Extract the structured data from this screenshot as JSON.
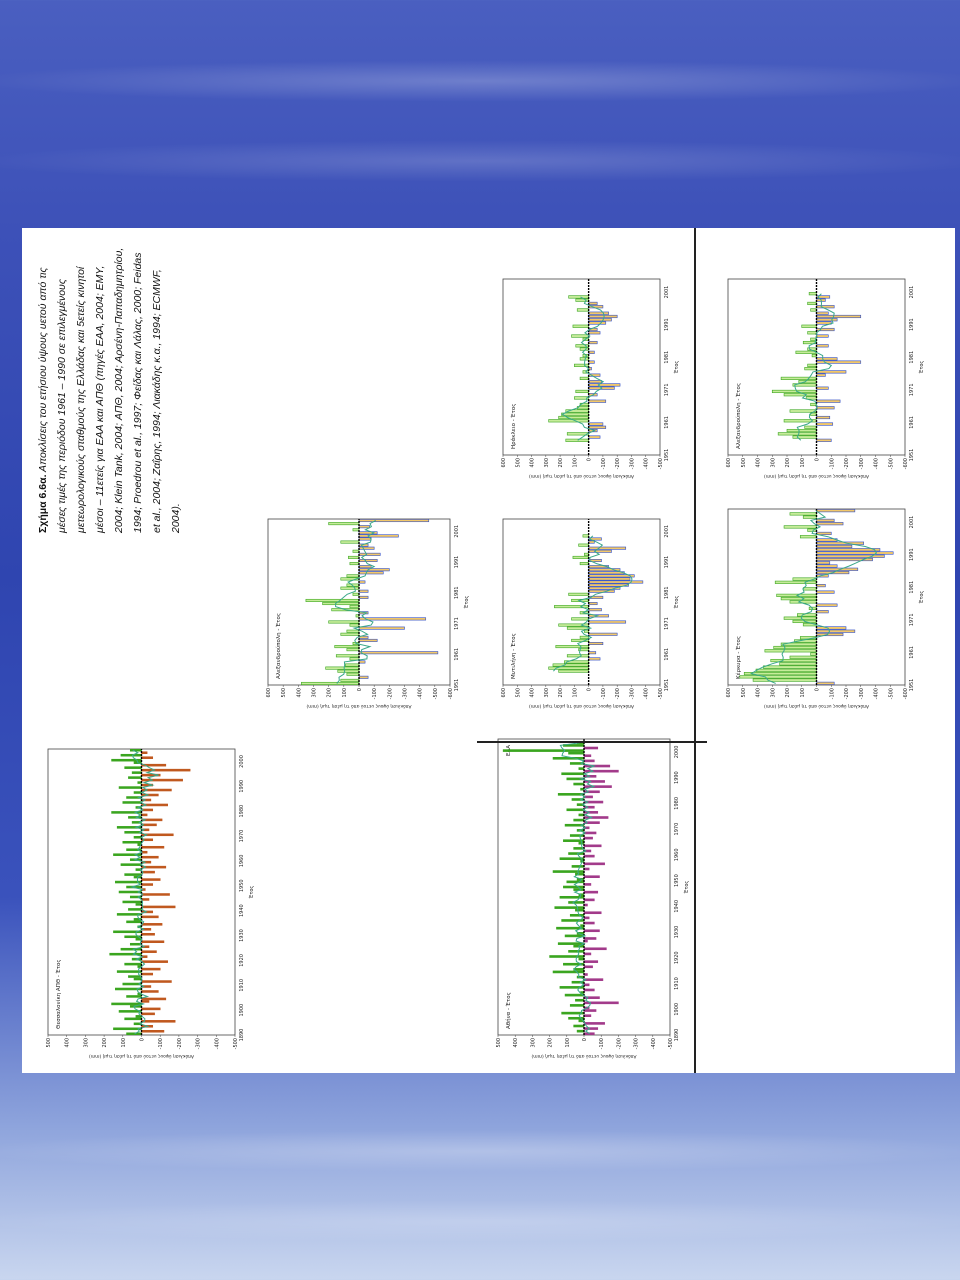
{
  "caption": {
    "lead": "Σχήμα 6.6α.",
    "text": "Αποκλίσεις του ετήσιου ύψους υετού από τις μέσες τιμές της περιόδου 1961 – 1990 σε επιλεγμένους μετεωρολογικούς σταθμούς της Ελλάδας και 5ετείς κινητοί μέσοι – 11ετείς για ΕΑΑ και ΑΠΘ (πηγές ΕΑΑ, 2004; ΕΜΥ, 2004; Klein Tank, 2004; ΑΠΘ, 2004; Αρσένη-Παπαδημητρίου, 1994; Proedrou et al., 1997; Φείδας και Λάλας, 2000; Feidas et al., 2004; Ζαΐρης, 1994; Λιακάδης κ.α., 1994; ECMWF, 2004)."
  },
  "colors": {
    "positive": "#3aa51f",
    "positive_light": "#c6ec9a",
    "negative": "#f2c86a",
    "negative_edge": "#2f4ec8",
    "negative_dark": "#c0581e",
    "negative_purple": "#a23a8a",
    "trend": "#3aa88a"
  },
  "chart_data": [
    {
      "type": "bar",
      "station": "Αθήνα - Έτος",
      "label": "ΕΑΑ",
      "ylabel": "Απόκλιση ύψους υετού από τη μέση τιμή (mm)",
      "xlabel": "Έτος",
      "xlim": [
        1890,
        2005
      ],
      "ylim": [
        -500,
        500
      ],
      "xticks": [
        1890,
        1900,
        1910,
        1920,
        1930,
        1940,
        1950,
        1960,
        1970,
        1980,
        1990,
        2000
      ],
      "yticks": [
        500,
        400,
        300,
        200,
        100,
        0,
        -100,
        -200,
        -300,
        -400,
        -500
      ],
      "start_year": 1890,
      "values": [
        -60,
        40,
        -80,
        60,
        -120,
        30,
        90,
        -40,
        130,
        -70,
        -30,
        80,
        -200,
        50,
        -90,
        110,
        20,
        -60,
        140,
        -30,
        70,
        -110,
        40,
        -20,
        180,
        60,
        -50,
        120,
        -80,
        30,
        200,
        -40,
        90,
        -130,
        60,
        150,
        -20,
        -70,
        110,
        40,
        -90,
        160,
        20,
        -60,
        130,
        -30,
        80,
        -100,
        50,
        170,
        -20,
        90,
        -60,
        140,
        30,
        -80,
        60,
        120,
        -40,
        100,
        40,
        -90,
        50,
        180,
        -30,
        70,
        -120,
        20,
        140,
        -60,
        90,
        -40,
        60,
        -100,
        30,
        120,
        -50,
        80,
        -70,
        40,
        -30,
        110,
        -90,
        60,
        -140,
        30,
        -80,
        100,
        -60,
        40,
        -110,
        70,
        -50,
        150,
        -90,
        20,
        -160,
        60,
        -120,
        100,
        -70,
        130,
        -200,
        30,
        -150,
        80,
        -60,
        180,
        -40,
        90,
        470,
        -80,
        120,
        40
      ],
      "negative_style": "purple"
    },
    {
      "type": "bar",
      "station": "Θεσσαλονίκη ΑΠΘ - Έτος",
      "ylabel": "Απόκλιση ύψους υετού από τη μέση τιμή (mm)",
      "xlabel": "Έτος",
      "xlim": [
        1890,
        2005
      ],
      "ylim": [
        -500,
        500
      ],
      "xticks": [
        1890,
        1900,
        1910,
        1920,
        1930,
        1940,
        1950,
        1960,
        1970,
        1980,
        1990,
        2000
      ],
      "yticks": [
        500,
        400,
        300,
        200,
        100,
        0,
        -100,
        -200,
        -300,
        -400,
        -500
      ],
      "start_year": 1890,
      "values": [
        80,
        -120,
        150,
        -60,
        40,
        -180,
        90,
        30,
        -70,
        120,
        -100,
        60,
        160,
        -40,
        -130,
        80,
        20,
        -90,
        140,
        -50,
        100,
        -160,
        40,
        70,
        -60,
        130,
        -100,
        20,
        90,
        -140,
        50,
        -30,
        170,
        -80,
        110,
        -40,
        60,
        -120,
        30,
        90,
        -70,
        150,
        -50,
        20,
        -110,
        80,
        40,
        -90,
        130,
        -60,
        70,
        -180,
        30,
        100,
        -40,
        60,
        -150,
        120,
        -20,
        80,
        -60,
        140,
        -100,
        40,
        90,
        -70,
        30,
        -130,
        110,
        -50,
        60,
        -90,
        150,
        -30,
        80,
        -120,
        20,
        100,
        -60,
        40,
        -170,
        90,
        -40,
        130,
        -80,
        50,
        -110,
        70,
        -30,
        160,
        -60,
        30,
        -140,
        100,
        -50,
        80,
        -90,
        40,
        -160,
        120,
        -60,
        20,
        -220,
        70,
        -100,
        50,
        -260,
        90,
        -130,
        40,
        160,
        -60,
        110,
        -30,
        60
      ],
      "negative_style": "dark"
    },
    {
      "type": "bar",
      "station": "Κέρκυρα - Έτος",
      "ylabel": "Απόκλιση ύψους υετού από τη μέση τιμή (mm)",
      "xlabel": "Έτος",
      "xlim": [
        1951,
        2005
      ],
      "ylim": [
        -600,
        600
      ],
      "xticks": [
        1951,
        1961,
        1971,
        1981,
        1991,
        2001
      ],
      "yticks": [
        600,
        500,
        400,
        300,
        200,
        100,
        0,
        -100,
        -200,
        -300,
        -400,
        -500,
        -600
      ],
      "start_year": 1951,
      "values": [
        -120,
        430,
        520,
        490,
        410,
        360,
        250,
        310,
        180,
        40,
        350,
        290,
        240,
        150,
        110,
        -180,
        -260,
        -200,
        90,
        160,
        220,
        130,
        -80,
        50,
        -140,
        180,
        240,
        270,
        -120,
        90,
        -60,
        280,
        160,
        -80,
        -220,
        -280,
        -140,
        -90,
        -380,
        -460,
        -520,
        -430,
        -240,
        -320,
        -140,
        110,
        -100,
        60,
        220,
        -180,
        -120,
        90,
        180,
        -260
      ],
      "negative_style": "light"
    },
    {
      "type": "bar",
      "station": "Μυτιλήνη - Έτος",
      "ylabel": "Απόκλιση ύψους υετού από τη μέση τιμή (mm)",
      "xlabel": "Έτος",
      "xlim": [
        1951,
        2005
      ],
      "ylim": [
        -500,
        600
      ],
      "xticks": [
        1951,
        1961,
        1971,
        1981,
        1991,
        2001
      ],
      "yticks": [
        600,
        500,
        400,
        300,
        200,
        100,
        0,
        -100,
        -200,
        -300,
        -400,
        -500
      ],
      "start_year": 1955,
      "values": [
        210,
        280,
        250,
        170,
        -80,
        150,
        -50,
        70,
        230,
        -100,
        120,
        60,
        -200,
        30,
        150,
        210,
        -260,
        120,
        -140,
        60,
        -90,
        240,
        -60,
        120,
        -100,
        140,
        -180,
        -220,
        -280,
        -380,
        -290,
        -320,
        -250,
        -220,
        -140,
        60,
        -90,
        110,
        30,
        -160,
        -260,
        70,
        -40,
        -90,
        40
      ],
      "negative_style": "light"
    },
    {
      "type": "bar",
      "station": "Ηράκλειο - Έτος",
      "ylabel": "Απόκλιση ύψους υετού από τη μέση τιμή (mm)",
      "xlabel": "Έτος",
      "xlim": [
        1951,
        2005
      ],
      "ylim": [
        -500,
        600
      ],
      "xticks": [
        1951,
        1961,
        1971,
        1981,
        1991,
        2001
      ],
      "yticks": [
        600,
        500,
        400,
        300,
        200,
        100,
        0,
        -100,
        -200,
        -300,
        -400,
        -500
      ],
      "start_year": 1955,
      "values": [
        160,
        -80,
        150,
        -60,
        -120,
        -100,
        280,
        210,
        190,
        160,
        80,
        60,
        -120,
        100,
        -60,
        90,
        -180,
        -220,
        -90,
        60,
        -80,
        40,
        -20,
        100,
        -40,
        60,
        40,
        -40,
        60,
        90,
        -60,
        40,
        120,
        -80,
        -60,
        110,
        -120,
        -160,
        -200,
        -140,
        80,
        -100,
        -60,
        90,
        140
      ],
      "negative_style": "light"
    },
    {
      "type": "bar",
      "station": "Αλεξανδρούπολη - Έτος",
      "ylabel": "Απόκλιση ύψους υετού από τη μέση τιμή (mm)",
      "xlabel": "Έτος",
      "xlim": [
        1951,
        2005
      ],
      "ylim": [
        -600,
        600
      ],
      "xticks": [
        1951,
        1961,
        1971,
        1981,
        1991,
        2001
      ],
      "yticks": [
        600,
        500,
        400,
        300,
        200,
        100,
        0,
        -100,
        -200,
        -300,
        -400,
        -500,
        -600
      ],
      "start_year": 1955,
      "values": [
        -100,
        160,
        260,
        200,
        80,
        -110,
        220,
        -90,
        40,
        180,
        -120,
        40,
        -160,
        70,
        220,
        300,
        -80,
        160,
        120,
        240,
        -60,
        -200,
        80,
        60,
        -300,
        -140,
        30,
        140,
        60,
        -80,
        90,
        40,
        -80,
        60,
        -120,
        100,
        -100,
        -140,
        -300,
        -80,
        40,
        -120,
        60,
        -60,
        -90,
        50
      ],
      "negative_style": "light"
    },
    {
      "type": "bar",
      "station": "Αλεξανδρούπολη - Έτος",
      "ylabel": "Απόκλιση ύψους υετού από τη μέση τιμή (mm)",
      "xlabel": "Έτος",
      "xlim": [
        1951,
        2005
      ],
      "ylim": [
        -600,
        600
      ],
      "xticks": [
        1951,
        1961,
        1971,
        1981,
        1991,
        2001
      ],
      "yticks": [
        600,
        500,
        400,
        300,
        200,
        100,
        0,
        -100,
        -200,
        -300,
        -400,
        -500,
        -600
      ],
      "start_year": 1951,
      "values": [
        380,
        120,
        -60,
        80,
        140,
        220,
        90,
        -40,
        60,
        150,
        -520,
        80,
        160,
        40,
        -120,
        -60,
        120,
        80,
        -300,
        60,
        200,
        -440,
        20,
        -60,
        180,
        60,
        240,
        350,
        -60,
        40,
        -60,
        120,
        80,
        -40,
        120,
        80,
        -160,
        -200,
        -80,
        60,
        -120,
        70,
        -140,
        40,
        -100,
        -60,
        120,
        -80,
        -260,
        -120,
        40,
        -70,
        200,
        -460
      ],
      "negative_style": "light"
    }
  ]
}
